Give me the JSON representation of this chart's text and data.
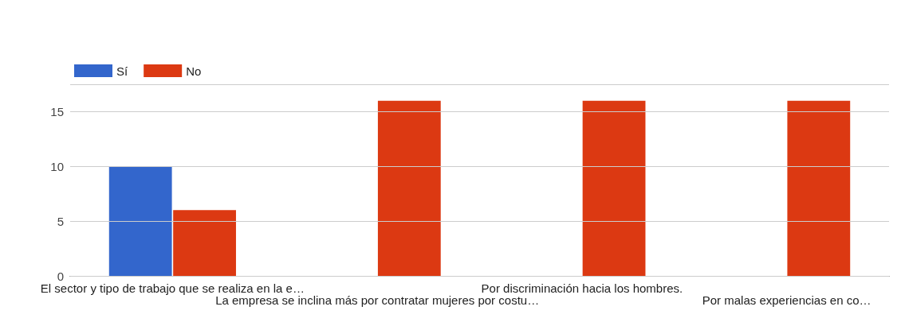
{
  "chart_data": {
    "type": "bar",
    "categories": [
      "El sector y tipo de trabajo que se realiza en la e…",
      "La empresa se inclina más por contratar mujeres por costu…",
      "Por discriminación hacia los hombres.",
      "Por malas experiencias en co…"
    ],
    "series": [
      {
        "name": "Sí",
        "color": "#3366cc",
        "values": [
          10,
          0,
          0,
          0
        ]
      },
      {
        "name": "No",
        "color": "#dc3912",
        "values": [
          6,
          16,
          16,
          16
        ]
      }
    ],
    "ylim": [
      0,
      17.5
    ],
    "yticks": [
      0,
      5,
      10,
      15
    ],
    "grid": "y",
    "legend": "top left"
  }
}
